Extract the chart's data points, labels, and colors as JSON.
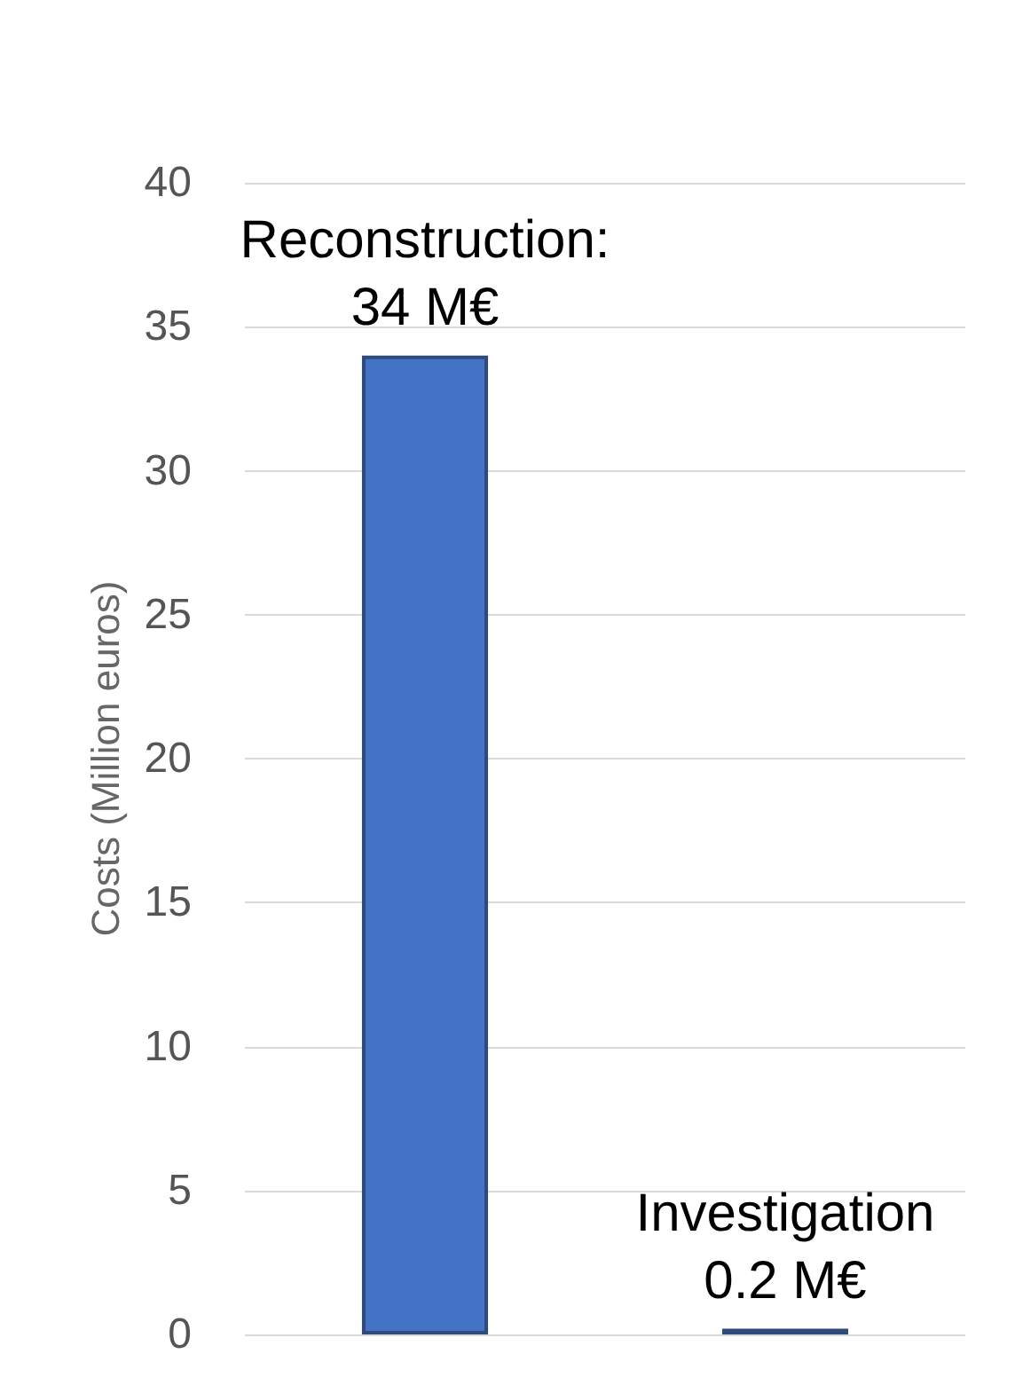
{
  "chart_data": {
    "type": "bar",
    "ylabel": "Costs (Million euros)",
    "categories": [
      null,
      null
    ],
    "values": [
      34,
      0.2
    ],
    "value_labels": [
      "Reconstruction:\n34 M€",
      "Investigation\n0.2 M€"
    ],
    "color": "#4472c4",
    "ylim": [
      0,
      40
    ],
    "yticks": [
      0,
      5,
      10,
      15,
      20,
      25,
      30,
      35,
      40
    ],
    "grid": "y"
  }
}
